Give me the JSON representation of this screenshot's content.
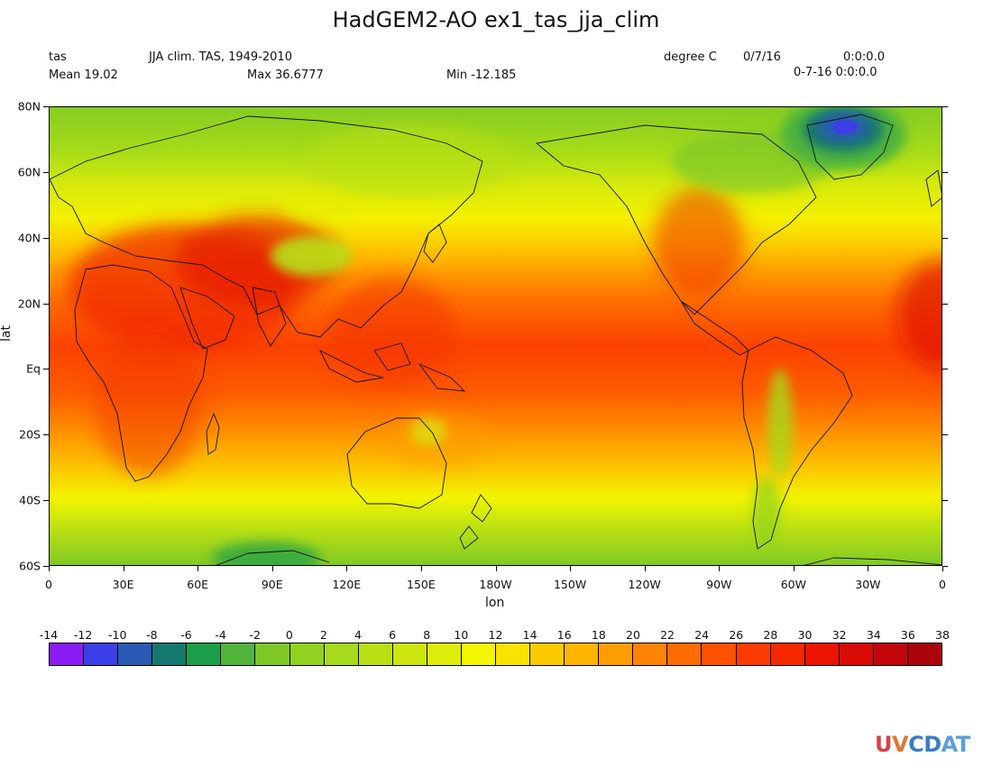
{
  "header": {
    "title": "HadGEM2-AO ex1_tas_jja_clim",
    "variable": "tas",
    "description": "JJA clim. TAS, 1949-2010",
    "units": "degree C",
    "date": "0/7/16",
    "time": "0:0:0.0",
    "datetime": "0-7-16 0:0:0.0",
    "mean": "Mean 19.02",
    "max": "Max 36.6777",
    "min": "Min -12.185"
  },
  "axes": {
    "xlabel": "lon",
    "ylabel": "lat",
    "lon_ticks": [
      "0",
      "30E",
      "60E",
      "90E",
      "120E",
      "150E",
      "180W",
      "150W",
      "120W",
      "90W",
      "60W",
      "30W",
      "0"
    ],
    "lat_ticks": [
      "80N",
      "60N",
      "40N",
      "20N",
      "Eq",
      "20S",
      "40S",
      "60S"
    ]
  },
  "map": {
    "lon_range": [
      0,
      360
    ],
    "lat_range": [
      -60,
      80
    ]
  },
  "colorbar": {
    "labels": [
      "-14",
      "-12",
      "-10",
      "-8",
      "-6",
      "-4",
      "-2",
      "0",
      "2",
      "4",
      "6",
      "8",
      "10",
      "12",
      "14",
      "16",
      "18",
      "20",
      "22",
      "24",
      "26",
      "28",
      "30",
      "32",
      "34",
      "36",
      "38"
    ],
    "colors": [
      "#8a1cf5",
      "#3c3ee6",
      "#2a5ab4",
      "#14786e",
      "#1b9e4a",
      "#50b43a",
      "#7ec826",
      "#92d21e",
      "#a6da1a",
      "#b8e014",
      "#cce60e",
      "#dced0a",
      "#f2f600",
      "#f8e200",
      "#fcca00",
      "#feb400",
      "#fe9c00",
      "#fe8400",
      "#fe6c00",
      "#fe5200",
      "#fc3c00",
      "#f62800",
      "#ec1400",
      "#da0a06",
      "#c4060a",
      "#aa040c",
      "#8c020c"
    ]
  },
  "logo": {
    "text": "UV-CDAT"
  }
}
